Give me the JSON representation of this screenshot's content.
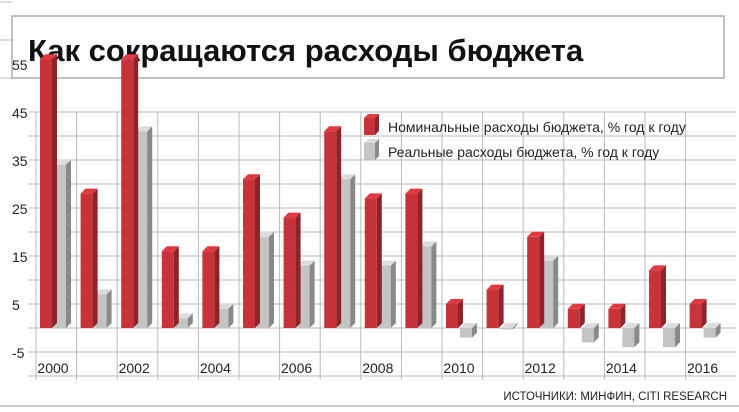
{
  "chart_data": {
    "type": "bar",
    "title": "Как сокращаются расходы бюджета",
    "source": "ИСТОЧНИКИ: МИНФИН, CITI RESEARCH",
    "categories": [
      "2000",
      "2001",
      "2002",
      "2003",
      "2004",
      "2005",
      "2006",
      "2007",
      "2008",
      "2009",
      "2010",
      "2011",
      "2012",
      "2013",
      "2014",
      "2015",
      "2016"
    ],
    "x_tick_labels": [
      "2000",
      "2002",
      "2004",
      "2006",
      "2008",
      "2010",
      "2012",
      "2014",
      "2016"
    ],
    "y_tick_labels": [
      "55",
      "45",
      "35",
      "25",
      "15",
      "5",
      "-5"
    ],
    "ylim": [
      -5,
      55
    ],
    "grid": true,
    "legend_position": "top-right",
    "series": [
      {
        "name": "Номинальные расходы бюджета, % год к году",
        "color": "#c8333a",
        "values": [
          56,
          28,
          56,
          16,
          16,
          31,
          23,
          41,
          27,
          28,
          5,
          8,
          19,
          4,
          4,
          12,
          5
        ]
      },
      {
        "name": "Реальные расходы бюджета, % год к году",
        "color": "#c4c4c4",
        "values": [
          34,
          7,
          41,
          2,
          4,
          19,
          13,
          31,
          13,
          17,
          -2,
          0,
          14,
          -3,
          -4,
          -4,
          -2
        ]
      }
    ]
  }
}
